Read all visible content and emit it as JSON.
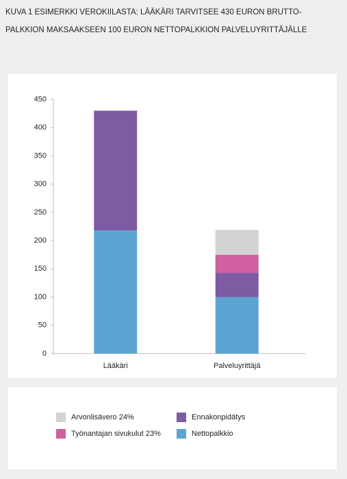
{
  "chart_data": {
    "type": "stacked-bar",
    "title": [
      "KUVA 1 ESIMERKKI VEROKIILASTA: LÄÄKÄRI TARVITSEE 430 EURON BRUTTO-",
      "PALKKION MAKSAAKSEEN 100 EURON NETTOPALKKION PALVELUYRITTÄJÄLLE"
    ],
    "categories": [
      "Lääkäri",
      "Palveluyrittäjä"
    ],
    "series": [
      {
        "name": "Nettopalkkio",
        "color": "#5ba4d2",
        "values": [
          218,
          100
        ]
      },
      {
        "name": "Ennakonpidätys",
        "color": "#7f5ba3",
        "values": [
          212,
          43
        ]
      },
      {
        "name": "Työnantajan sivukulut 23%",
        "color": "#d0609f",
        "values": [
          null,
          32
        ]
      },
      {
        "name": "Arvonlisävero 24%",
        "color": "#d3d3d3",
        "values": [
          null,
          44
        ]
      }
    ],
    "ylim": [
      0,
      450
    ],
    "yticks": [
      0,
      50,
      100,
      150,
      200,
      250,
      300,
      350,
      400,
      450
    ]
  }
}
